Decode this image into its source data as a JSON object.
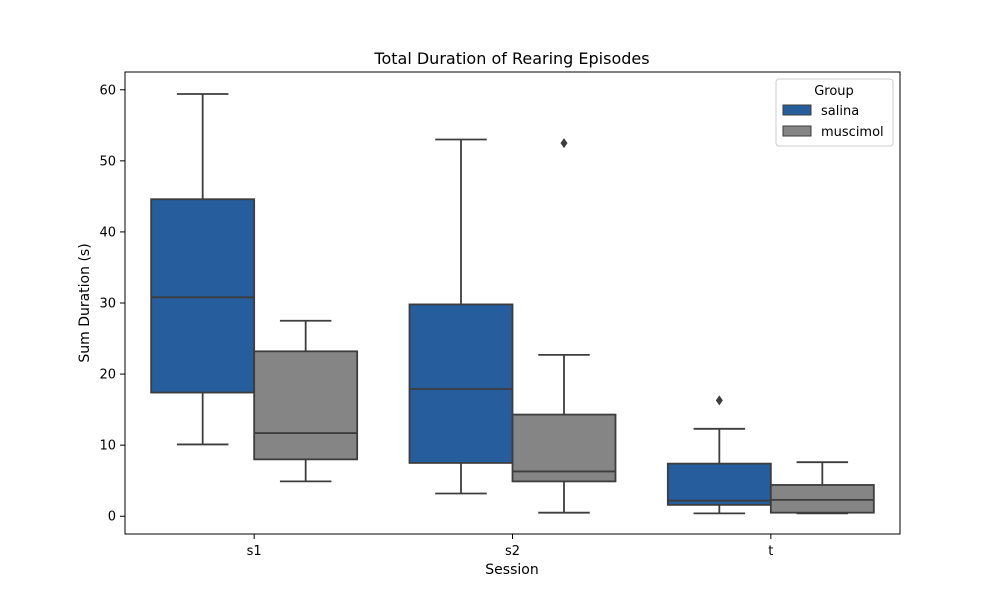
{
  "chart_data": {
    "type": "boxplot",
    "title": "Total Duration of Rearing Episodes",
    "xlabel": "Session",
    "ylabel": "Sum Duration (s)",
    "categories": [
      "s1",
      "s2",
      "t"
    ],
    "ylim": [
      -2.5,
      62.5
    ],
    "yticks": [
      0,
      10,
      20,
      30,
      40,
      50,
      60
    ],
    "grid": false,
    "legend": {
      "title": "Group",
      "position": "top-right"
    },
    "series": [
      {
        "name": "salina",
        "color": "#265d9c",
        "boxes": [
          {
            "category": "s1",
            "whisker_low": 10.1,
            "q1": 17.4,
            "median": 30.8,
            "q3": 44.6,
            "whisker_high": 59.4,
            "outliers": []
          },
          {
            "category": "s2",
            "whisker_low": 3.2,
            "q1": 7.5,
            "median": 17.9,
            "q3": 29.8,
            "whisker_high": 53.0,
            "outliers": []
          },
          {
            "category": "t",
            "whisker_low": 0.4,
            "q1": 1.6,
            "median": 2.2,
            "q3": 7.4,
            "whisker_high": 12.3,
            "outliers": [
              16.3
            ]
          }
        ]
      },
      {
        "name": "muscimol",
        "color": "#858585",
        "boxes": [
          {
            "category": "s1",
            "whisker_low": 4.9,
            "q1": 8.0,
            "median": 11.7,
            "q3": 23.2,
            "whisker_high": 27.5,
            "outliers": []
          },
          {
            "category": "s2",
            "whisker_low": 0.5,
            "q1": 4.9,
            "median": 6.3,
            "q3": 14.3,
            "whisker_high": 22.7,
            "outliers": [
              52.5
            ]
          },
          {
            "category": "t",
            "whisker_low": 0.4,
            "q1": 0.5,
            "median": 2.3,
            "q3": 4.4,
            "whisker_high": 7.6,
            "outliers": []
          }
        ]
      }
    ]
  }
}
